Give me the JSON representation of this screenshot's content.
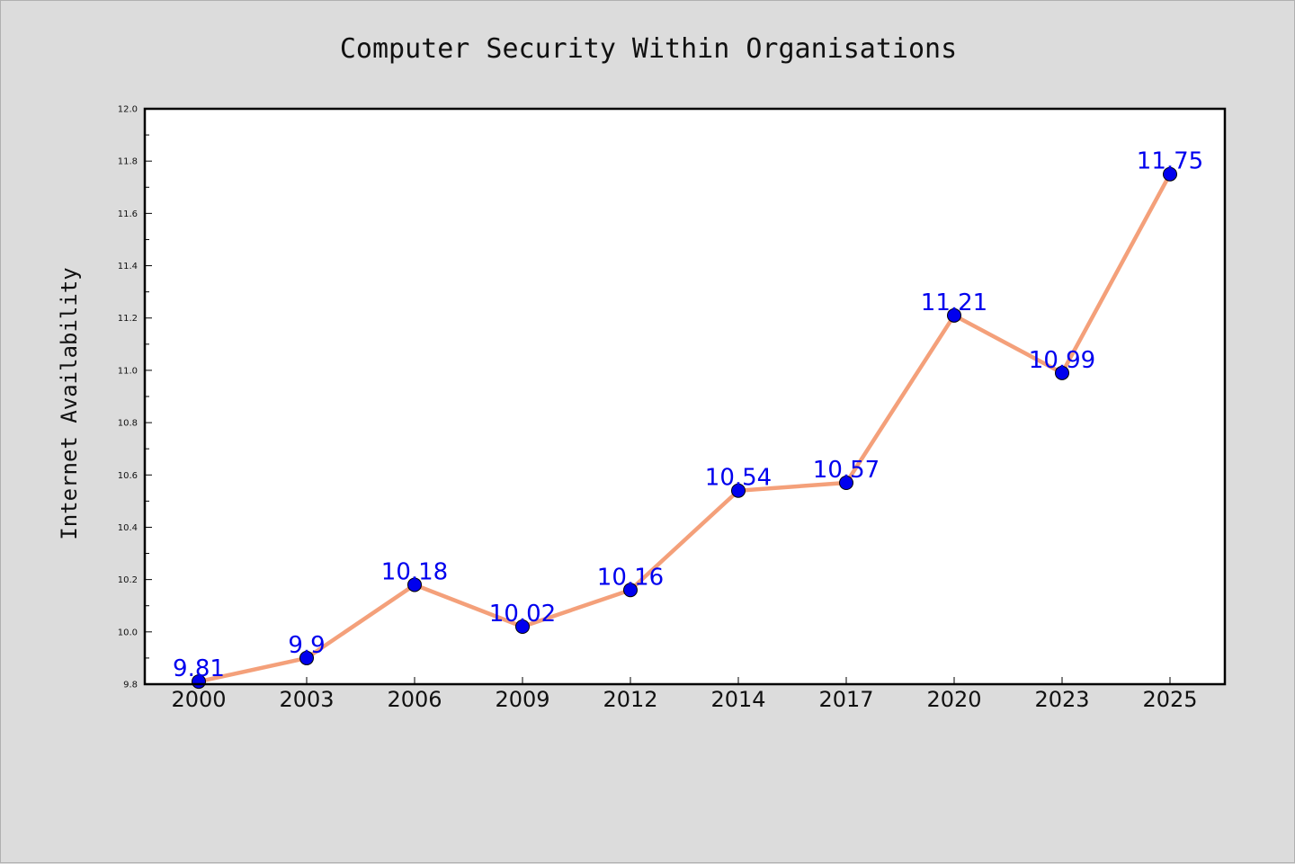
{
  "chart_data": {
    "type": "line",
    "title": "Computer Security Within Organisations",
    "xlabel": "",
    "ylabel": "Internet Availability",
    "categories": [
      "2000",
      "2003",
      "2006",
      "2009",
      "2012",
      "2014",
      "2017",
      "2020",
      "2023",
      "2025"
    ],
    "series": [
      {
        "values": [
          9.81,
          9.9,
          10.18,
          10.02,
          10.16,
          10.54,
          10.57,
          11.21,
          10.99,
          11.75
        ],
        "data_labels": [
          "9.81",
          "9.9",
          "10.18",
          "10.02",
          "10.16",
          "10.54",
          "10.57",
          "11.21",
          "10.99",
          "11.75"
        ],
        "line_color": "#f4a07a",
        "marker_color": "#0000ee",
        "label_color": "#0000ee"
      }
    ],
    "ylim": [
      9.8,
      12.0
    ],
    "yticks": [
      "9.8",
      "10.0",
      "10.2",
      "10.4",
      "10.6",
      "10.8",
      "11.0",
      "11.2",
      "11.4",
      "11.6",
      "11.8",
      "12.0"
    ],
    "grid": false,
    "legend": "none",
    "background_color": "#dcdcdc",
    "plot_background_color": "#ffffff"
  }
}
